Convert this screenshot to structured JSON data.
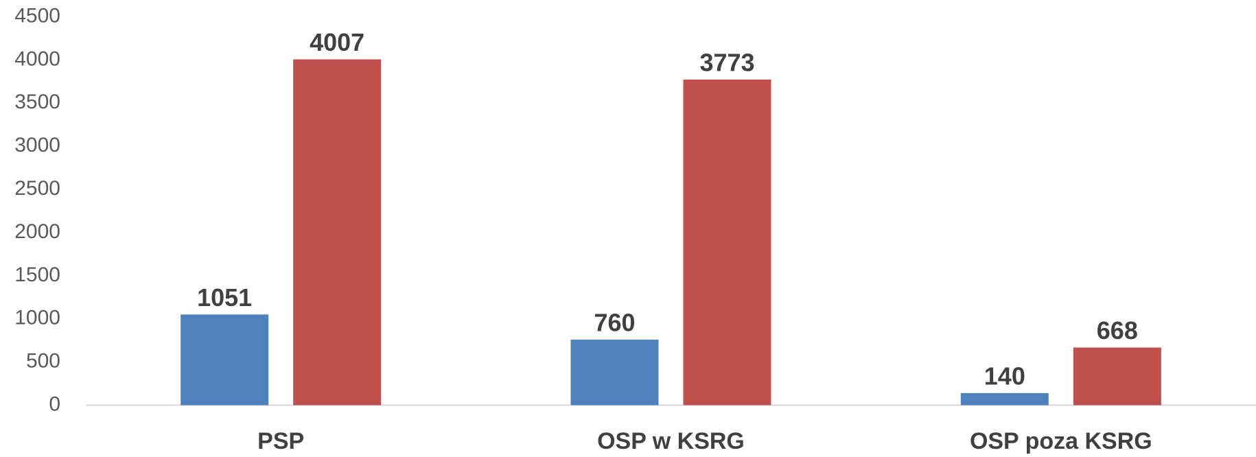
{
  "chart_data": {
    "type": "bar",
    "categories": [
      "PSP",
      "OSP w KSRG",
      "OSP poza KSRG"
    ],
    "series": [
      {
        "color": "#4f81bd",
        "values": [
          1051,
          760,
          140
        ]
      },
      {
        "color": "#c0504d",
        "values": [
          4007,
          3773,
          668
        ]
      }
    ],
    "ylim": [
      0,
      4500
    ],
    "yticks": [
      0,
      500,
      1000,
      1500,
      2000,
      2500,
      3000,
      3500,
      4000,
      4500
    ],
    "grid": false,
    "data_labels": true
  }
}
